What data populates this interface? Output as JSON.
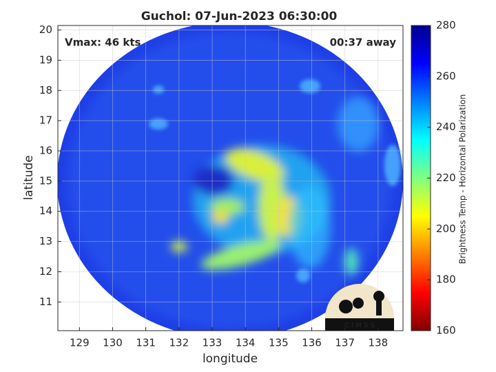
{
  "chart_data": {
    "type": "image",
    "title": "Guchol: 07-Jun-2023 06:30:00",
    "annotations": [
      "Vmax: 46 kts",
      "00:37 away"
    ],
    "x_label": "longitude",
    "y_label": "latitude",
    "xlim": [
      128.35,
      138.75
    ],
    "ylim": [
      10.05,
      20.15
    ],
    "xticks": [
      129,
      130,
      131,
      132,
      133,
      134,
      135,
      136,
      137,
      138
    ],
    "yticks": [
      11,
      12,
      13,
      14,
      15,
      16,
      17,
      18,
      19,
      20
    ],
    "grid": true,
    "colorbar": {
      "label": "Brightness Temp - Horizontal Polarization",
      "lim": [
        160,
        280
      ],
      "ticks": [
        160,
        180,
        200,
        220,
        240,
        260,
        280
      ],
      "colormap": [
        "#800000",
        "#ff0000",
        "#ff8000",
        "#ffff00",
        "#80ff80",
        "#00ffff",
        "#0080ff",
        "#0000ff",
        "#00008f"
      ]
    },
    "logo": "C I M S S"
  }
}
